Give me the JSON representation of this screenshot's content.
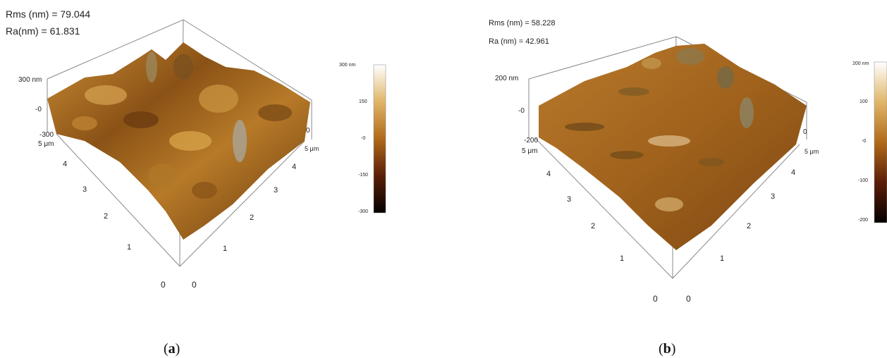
{
  "panels": [
    {
      "rms": "Rms (nm) = 79.044",
      "ra": "Ra(nm) = 61.831",
      "z_ticks": [
        "300 nm",
        "-0",
        "-300"
      ],
      "x_ticks": [
        "0",
        "1",
        "2",
        "3",
        "4",
        "5 μm"
      ],
      "y_ticks": [
        "0",
        "1",
        "2",
        "3",
        "4",
        "5 μm"
      ],
      "right_ticks": [
        "0",
        "5 μm"
      ],
      "colorbar_ticks": [
        "300 nm",
        "150",
        "-0",
        "-150",
        "-300"
      ],
      "caption_open": "(",
      "caption_letter": "a",
      "caption_close": ")"
    },
    {
      "rms": "Rms (nm) = 58.228",
      "ra": "Ra (nm) = 42.961",
      "z_ticks": [
        "200 nm",
        "-0",
        "-200"
      ],
      "x_ticks": [
        "0",
        "1",
        "2",
        "3",
        "4",
        "5 μm"
      ],
      "y_ticks": [
        "0",
        "1",
        "2",
        "3",
        "4",
        "5 μm"
      ],
      "right_ticks": [
        "0",
        "5 μm"
      ],
      "colorbar_ticks": [
        "200 nm",
        "100",
        "-0",
        "-100",
        "-200"
      ],
      "caption_open": "(",
      "caption_letter": "b",
      "caption_close": ")"
    }
  ],
  "colors": {
    "surface_dark": "#5a2e08",
    "surface_mid": "#a0621a",
    "surface_light": "#d9a148",
    "highlight": "#e8d3a0"
  }
}
